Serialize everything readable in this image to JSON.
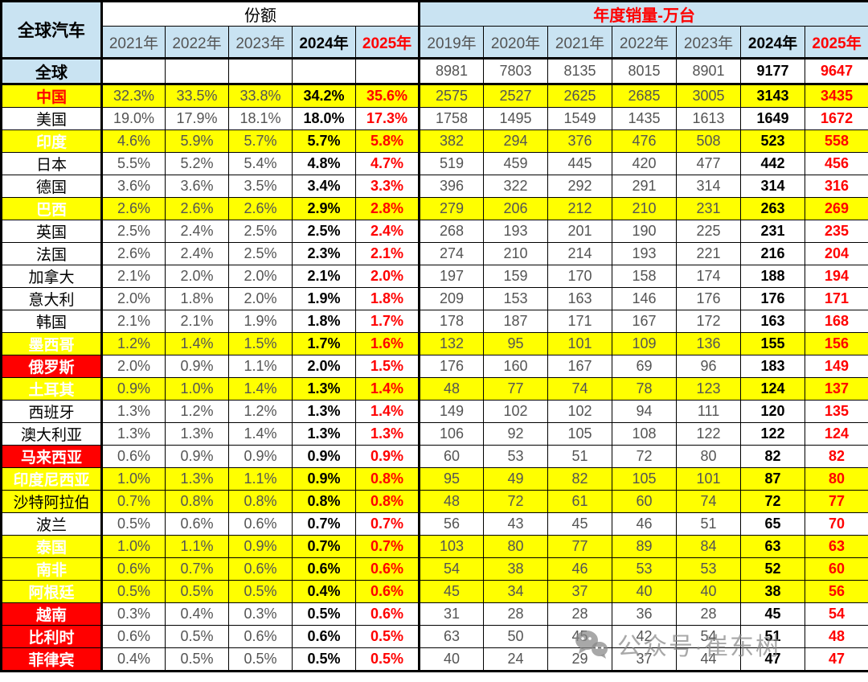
{
  "chart_data": {
    "type": "table",
    "title": "全球汽车",
    "share_group_label": "份额",
    "sales_group_label": "年度销量-万台",
    "share_years": [
      "2021年",
      "2022年",
      "2023年",
      "2024年",
      "2025年"
    ],
    "sales_years": [
      "2019年",
      "2020年",
      "2021年",
      "2022年",
      "2023年",
      "2024年",
      "2025年"
    ],
    "rows": [
      {
        "name": "全球",
        "style": "total",
        "share": [
          "",
          "",
          "",
          "",
          ""
        ],
        "sales": [
          "8981",
          "7803",
          "8135",
          "8015",
          "8901",
          "9177",
          "9647"
        ]
      },
      {
        "name": "中国",
        "style": "china",
        "share": [
          "32.3%",
          "33.5%",
          "33.8%",
          "34.2%",
          "35.6%"
        ],
        "sales": [
          "2575",
          "2527",
          "2625",
          "2685",
          "3005",
          "3143",
          "3435"
        ]
      },
      {
        "name": "美国",
        "style": "plain",
        "share": [
          "19.0%",
          "17.9%",
          "18.1%",
          "18.0%",
          "17.3%"
        ],
        "sales": [
          "1758",
          "1495",
          "1549",
          "1435",
          "1613",
          "1649",
          "1672"
        ]
      },
      {
        "name": "印度",
        "style": "red_yellow",
        "share": [
          "4.6%",
          "5.9%",
          "5.7%",
          "5.7%",
          "5.8%"
        ],
        "sales": [
          "382",
          "294",
          "376",
          "476",
          "508",
          "523",
          "558"
        ]
      },
      {
        "name": "日本",
        "style": "plain",
        "share": [
          "5.5%",
          "5.2%",
          "5.4%",
          "4.8%",
          "4.7%"
        ],
        "sales": [
          "519",
          "459",
          "445",
          "420",
          "477",
          "442",
          "456"
        ]
      },
      {
        "name": "德国",
        "style": "plain",
        "share": [
          "3.6%",
          "3.6%",
          "3.5%",
          "3.4%",
          "3.3%"
        ],
        "sales": [
          "396",
          "322",
          "292",
          "291",
          "314",
          "314",
          "316"
        ]
      },
      {
        "name": "巴西",
        "style": "red_yellow",
        "share": [
          "2.6%",
          "2.6%",
          "2.6%",
          "2.9%",
          "2.8%"
        ],
        "sales": [
          "279",
          "206",
          "212",
          "210",
          "231",
          "263",
          "269"
        ]
      },
      {
        "name": "英国",
        "style": "plain",
        "share": [
          "2.5%",
          "2.4%",
          "2.5%",
          "2.5%",
          "2.4%"
        ],
        "sales": [
          "268",
          "193",
          "201",
          "190",
          "225",
          "231",
          "235"
        ]
      },
      {
        "name": "法国",
        "style": "plain",
        "share": [
          "2.6%",
          "2.4%",
          "2.5%",
          "2.3%",
          "2.1%"
        ],
        "sales": [
          "274",
          "210",
          "214",
          "193",
          "221",
          "216",
          "204"
        ]
      },
      {
        "name": "加拿大",
        "style": "plain",
        "share": [
          "2.1%",
          "2.0%",
          "2.0%",
          "2.1%",
          "2.0%"
        ],
        "sales": [
          "197",
          "159",
          "170",
          "158",
          "174",
          "188",
          "194"
        ]
      },
      {
        "name": "意大利",
        "style": "plain",
        "share": [
          "2.0%",
          "1.8%",
          "2.0%",
          "1.9%",
          "1.8%"
        ],
        "sales": [
          "209",
          "153",
          "163",
          "146",
          "176",
          "176",
          "171"
        ]
      },
      {
        "name": "韩国",
        "style": "plain",
        "share": [
          "2.1%",
          "2.1%",
          "1.9%",
          "1.8%",
          "1.7%"
        ],
        "sales": [
          "178",
          "187",
          "171",
          "167",
          "172",
          "163",
          "168"
        ]
      },
      {
        "name": "墨西哥",
        "style": "red_yellow",
        "share": [
          "1.2%",
          "1.4%",
          "1.5%",
          "1.7%",
          "1.6%"
        ],
        "sales": [
          "132",
          "95",
          "101",
          "109",
          "136",
          "155",
          "156"
        ]
      },
      {
        "name": "俄罗斯",
        "style": "red_white",
        "share": [
          "2.0%",
          "0.9%",
          "1.1%",
          "2.0%",
          "1.5%"
        ],
        "sales": [
          "176",
          "160",
          "167",
          "69",
          "96",
          "183",
          "149"
        ]
      },
      {
        "name": "土耳其",
        "style": "red_yellow",
        "share": [
          "0.9%",
          "1.0%",
          "1.4%",
          "1.3%",
          "1.4%"
        ],
        "sales": [
          "48",
          "77",
          "74",
          "78",
          "123",
          "124",
          "137"
        ]
      },
      {
        "name": "西班牙",
        "style": "plain",
        "share": [
          "1.3%",
          "1.2%",
          "1.2%",
          "1.3%",
          "1.4%"
        ],
        "sales": [
          "149",
          "102",
          "102",
          "94",
          "111",
          "120",
          "135"
        ]
      },
      {
        "name": "澳大利亚",
        "style": "plain",
        "share": [
          "1.3%",
          "1.3%",
          "1.4%",
          "1.3%",
          "1.3%"
        ],
        "sales": [
          "106",
          "92",
          "105",
          "108",
          "122",
          "122",
          "124"
        ]
      },
      {
        "name": "马来西亚",
        "style": "red_white",
        "share": [
          "0.6%",
          "0.9%",
          "0.9%",
          "0.9%",
          "0.9%"
        ],
        "sales": [
          "60",
          "53",
          "51",
          "72",
          "80",
          "82",
          "82"
        ]
      },
      {
        "name": "印度尼西亚",
        "style": "red_yellow",
        "share": [
          "1.0%",
          "1.3%",
          "1.1%",
          "0.9%",
          "0.8%"
        ],
        "sales": [
          "95",
          "49",
          "82",
          "105",
          "101",
          "87",
          "80"
        ]
      },
      {
        "name": "沙特阿拉伯",
        "style": "white_yellow",
        "share": [
          "0.7%",
          "0.8%",
          "0.8%",
          "0.8%",
          "0.8%"
        ],
        "sales": [
          "48",
          "72",
          "61",
          "60",
          "74",
          "72",
          "77"
        ]
      },
      {
        "name": "波兰",
        "style": "plain",
        "share": [
          "0.5%",
          "0.6%",
          "0.6%",
          "0.7%",
          "0.7%"
        ],
        "sales": [
          "56",
          "43",
          "45",
          "46",
          "51",
          "65",
          "70"
        ]
      },
      {
        "name": "泰国",
        "style": "red_yellow",
        "share": [
          "1.0%",
          "1.1%",
          "0.9%",
          "0.7%",
          "0.7%"
        ],
        "sales": [
          "103",
          "80",
          "77",
          "89",
          "84",
          "63",
          "63"
        ]
      },
      {
        "name": "南非",
        "style": "red_yellow",
        "share": [
          "0.6%",
          "0.7%",
          "0.6%",
          "0.6%",
          "0.6%"
        ],
        "sales": [
          "54",
          "38",
          "46",
          "53",
          "53",
          "52",
          "60"
        ]
      },
      {
        "name": "阿根廷",
        "style": "red_yellow",
        "share": [
          "0.5%",
          "0.5%",
          "0.5%",
          "0.4%",
          "0.6%"
        ],
        "sales": [
          "45",
          "34",
          "37",
          "40",
          "40",
          "38",
          "56"
        ]
      },
      {
        "name": "越南",
        "style": "red_white",
        "share": [
          "0.3%",
          "0.4%",
          "0.3%",
          "0.5%",
          "0.6%"
        ],
        "sales": [
          "31",
          "28",
          "28",
          "36",
          "28",
          "45",
          "54"
        ]
      },
      {
        "name": "比利时",
        "style": "red_white",
        "share": [
          "0.6%",
          "0.5%",
          "0.6%",
          "0.6%",
          "0.5%"
        ],
        "sales": [
          "63",
          "50",
          "45",
          "42",
          "54",
          "51",
          "48"
        ]
      },
      {
        "name": "菲律宾",
        "style": "red_white",
        "share": [
          "0.4%",
          "0.5%",
          "0.5%",
          "0.5%",
          "0.5%"
        ],
        "sales": [
          "40",
          "24",
          "29",
          "37",
          "44",
          "47",
          "47"
        ]
      }
    ]
  },
  "watermark": {
    "icon": "wechat-icon",
    "text": "公众号·崔东树"
  },
  "colors": {
    "header_blue": "#C9E3F2",
    "highlight_yellow": "#FFFF00",
    "highlight_red": "#FF0000",
    "accent_red": "#FF0000",
    "muted_value_gray": "#545454",
    "bold_black": "#000000"
  }
}
